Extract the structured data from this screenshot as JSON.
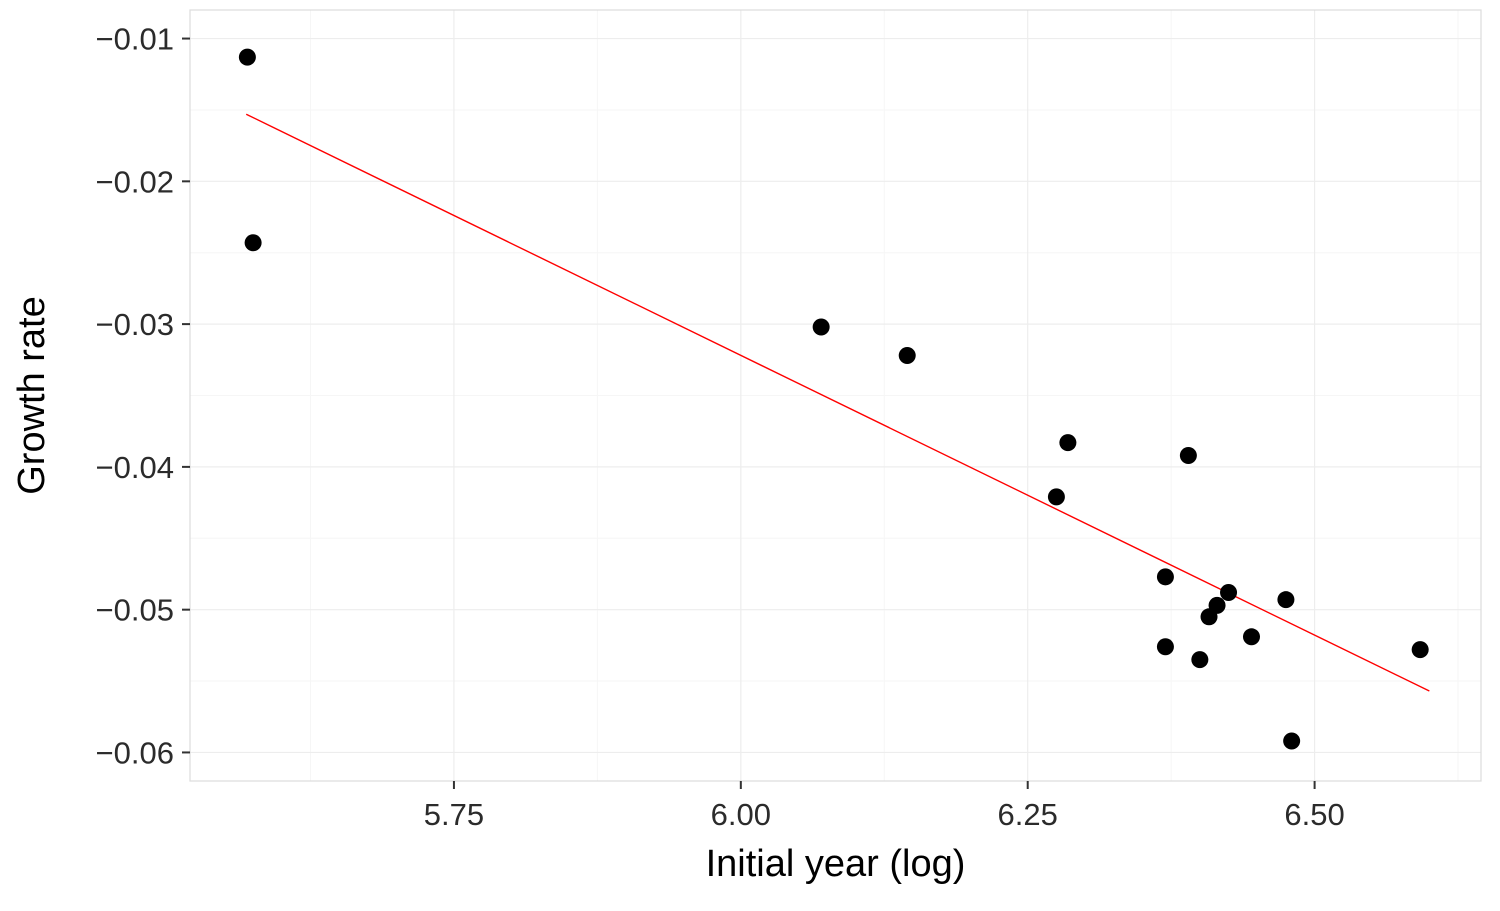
{
  "chart_data": {
    "type": "scatter",
    "title": "",
    "xlabel": "Initial year (log)",
    "ylabel": "Growth rate",
    "xlim": [
      5.52,
      6.645
    ],
    "ylim": [
      -0.062,
      -0.008
    ],
    "grid": true,
    "legend": "none",
    "x_ticks": [
      5.75,
      6.0,
      6.25,
      6.5
    ],
    "x_tick_labels": [
      "5.75",
      "6.00",
      "6.25",
      "6.50"
    ],
    "y_ticks": [
      -0.06,
      -0.05,
      -0.04,
      -0.03,
      -0.02,
      -0.01
    ],
    "y_tick_labels": [
      "−0.06",
      "−0.05",
      "−0.04",
      "−0.03",
      "−0.02",
      "−0.01"
    ],
    "x_minor_ticks": [
      5.625,
      5.875,
      6.125,
      6.375,
      6.625
    ],
    "y_minor_ticks": [
      -0.055,
      -0.045,
      -0.035,
      -0.025,
      -0.015
    ],
    "points": [
      [
        5.57,
        -0.0113
      ],
      [
        5.575,
        -0.0243
      ],
      [
        6.07,
        -0.0302
      ],
      [
        6.145,
        -0.0322
      ],
      [
        6.285,
        -0.0383
      ],
      [
        6.39,
        -0.0392
      ],
      [
        6.275,
        -0.0421
      ],
      [
        6.37,
        -0.0477
      ],
      [
        6.425,
        -0.0488
      ],
      [
        6.415,
        -0.0497
      ],
      [
        6.408,
        -0.0505
      ],
      [
        6.475,
        -0.0493
      ],
      [
        6.445,
        -0.0519
      ],
      [
        6.37,
        -0.0526
      ],
      [
        6.4,
        -0.0535
      ],
      [
        6.592,
        -0.0528
      ],
      [
        6.48,
        -0.0592
      ]
    ],
    "trendline": {
      "x1": 5.569,
      "y1": -0.0153,
      "x2": 6.6,
      "y2": -0.0557,
      "slope": -0.0392,
      "intercept": 0.203
    },
    "colors": {
      "point": "#000000",
      "trend": "#ff0000",
      "grid_major": "#ededed",
      "grid_minor": "#f6f6f6",
      "panel_border": "#dcdcdc",
      "tick_mark": "#333333",
      "tick_text": "#2b2b2b",
      "title_text": "#000000",
      "background": "#ffffff"
    },
    "point_radius": 8.5,
    "trend_width": 1.4
  }
}
